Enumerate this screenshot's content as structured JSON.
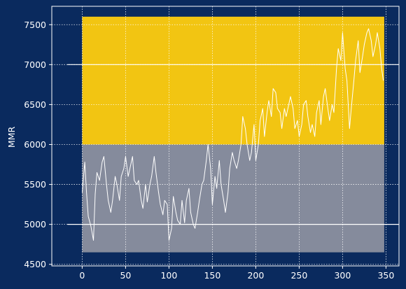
{
  "chart_data": {
    "type": "line",
    "title": "",
    "xlabel": "",
    "ylabel": "MMR",
    "xlim": [
      -35,
      365
    ],
    "ylim": [
      4480,
      7730
    ],
    "x_ticks": [
      0,
      50,
      100,
      150,
      200,
      250,
      300,
      350
    ],
    "y_ticks": [
      4500,
      5000,
      5500,
      6000,
      6500,
      7000,
      7500
    ],
    "grid": true,
    "grid_style": "dotted",
    "colors": {
      "background": "#0a2a5e",
      "axes": "#ffffff",
      "line": "#ffffff",
      "gold_band": "#f2c512",
      "gray_band": "#858b9c"
    },
    "bands": [
      {
        "name": "",
        "x": [
          0,
          348
        ],
        "y": [
          6000,
          7600
        ],
        "color": "#f2c512"
      },
      {
        "name": "",
        "x": [
          0,
          348
        ],
        "y": [
          4650,
          6000
        ],
        "color": "#858b9c"
      }
    ],
    "reference_lines": [
      {
        "y": 7000,
        "x": [
          -17,
          365
        ]
      },
      {
        "y": 5000,
        "x": [
          -17,
          365
        ]
      }
    ],
    "series": [
      {
        "name": "",
        "x": [
          0,
          3,
          5,
          7,
          10,
          13,
          15,
          17,
          20,
          23,
          25,
          28,
          30,
          33,
          35,
          38,
          40,
          43,
          45,
          48,
          50,
          53,
          55,
          58,
          60,
          63,
          65,
          68,
          70,
          73,
          75,
          78,
          80,
          83,
          85,
          88,
          90,
          93,
          95,
          98,
          100,
          103,
          105,
          108,
          110,
          113,
          115,
          118,
          120,
          123,
          125,
          128,
          130,
          133,
          135,
          138,
          140,
          143,
          145,
          148,
          150,
          153,
          155,
          158,
          160,
          163,
          165,
          168,
          170,
          173,
          175,
          178,
          180,
          183,
          185,
          188,
          190,
          193,
          195,
          198,
          200,
          203,
          205,
          208,
          210,
          213,
          215,
          218,
          220,
          223,
          225,
          228,
          230,
          233,
          235,
          238,
          240,
          243,
          245,
          248,
          250,
          253,
          255,
          258,
          260,
          263,
          265,
          268,
          270,
          273,
          275,
          278,
          280,
          283,
          285,
          288,
          290,
          293,
          295,
          298,
          300,
          303,
          305,
          308,
          310,
          313,
          315,
          318,
          320,
          323,
          325,
          328,
          330,
          333,
          335,
          338,
          340,
          343,
          345,
          347
        ],
        "values": [
          5400,
          5780,
          5400,
          5100,
          4980,
          4800,
          5380,
          5650,
          5550,
          5780,
          5850,
          5500,
          5300,
          5150,
          5300,
          5600,
          5500,
          5300,
          5600,
          5700,
          5850,
          5600,
          5700,
          5850,
          5550,
          5500,
          5550,
          5300,
          5200,
          5500,
          5280,
          5500,
          5600,
          5850,
          5650,
          5400,
          5250,
          5120,
          5300,
          5250,
          4800,
          4950,
          5350,
          5150,
          5050,
          5000,
          5300,
          5020,
          5300,
          5450,
          5150,
          5000,
          4950,
          5150,
          5300,
          5500,
          5550,
          5800,
          6000,
          5700,
          5250,
          5600,
          5450,
          5800,
          5500,
          5300,
          5150,
          5400,
          5700,
          5900,
          5800,
          5700,
          5800,
          6000,
          6350,
          6200,
          6000,
          5800,
          5900,
          6250,
          5800,
          6000,
          6300,
          6450,
          6100,
          6400,
          6550,
          6350,
          6700,
          6650,
          6450,
          6400,
          6200,
          6450,
          6350,
          6500,
          6600,
          6450,
          6200,
          6300,
          6100,
          6250,
          6500,
          6550,
          6350,
          6150,
          6250,
          6100,
          6400,
          6550,
          6250,
          6600,
          6700,
          6450,
          6300,
          6500,
          6400,
          6950,
          7200,
          7050,
          7400,
          6950,
          6800,
          6200,
          6450,
          6800,
          7050,
          7300,
          6900,
          7100,
          7250,
          7400,
          7450,
          7300,
          7100,
          7250,
          7400,
          7200,
          6950,
          6800
        ]
      }
    ]
  }
}
